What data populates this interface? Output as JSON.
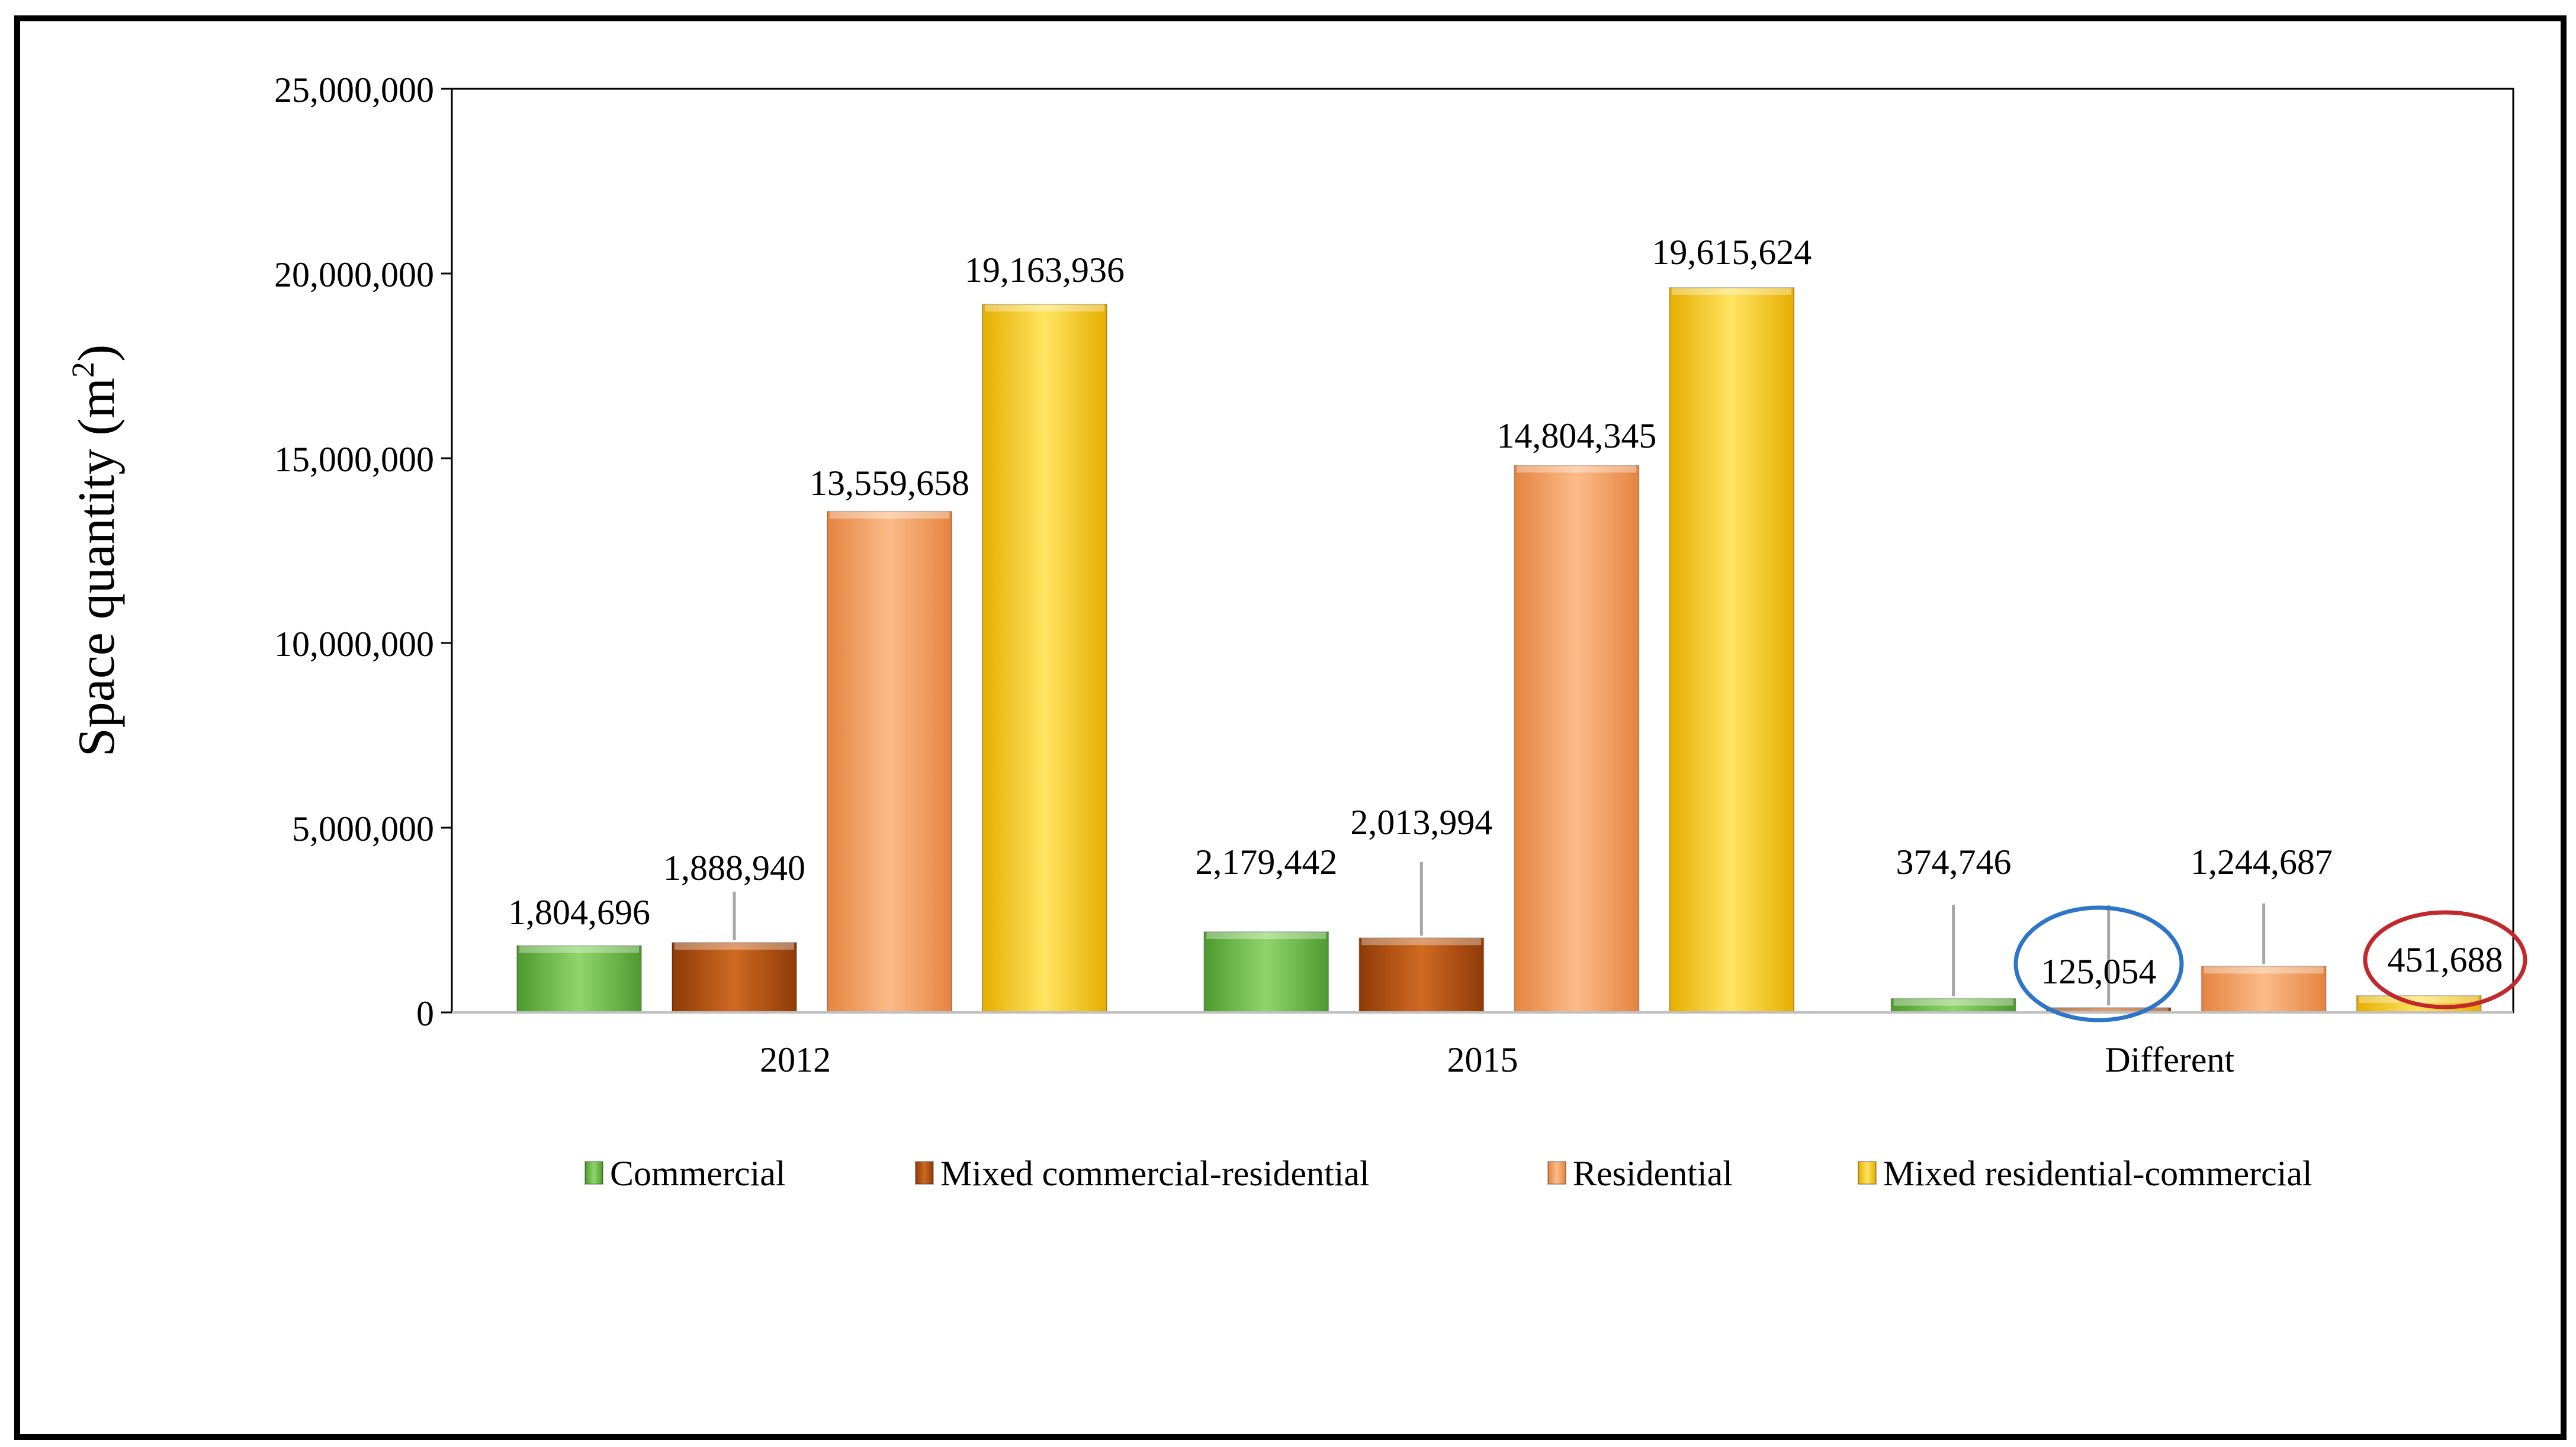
{
  "chart_data": {
    "type": "bar",
    "title": "",
    "xlabel": "",
    "ylabel": "Space quantity (m",
    "ylabel_sup": "2",
    "ylabel_close": ")",
    "categories": [
      "2012",
      "2015",
      "Different"
    ],
    "ylim": [
      0,
      25000000
    ],
    "yticks": [
      0,
      5000000,
      10000000,
      15000000,
      20000000,
      25000000
    ],
    "ytick_labels": [
      "0",
      "5,000,000",
      "10,000,000",
      "15,000,000",
      "20,000,000",
      "25,000,000"
    ],
    "grid": false,
    "legend_position": "bottom",
    "series": [
      {
        "name": "Commercial",
        "color": "#6abf45",
        "values": [
          1804696,
          2179442,
          374746
        ],
        "labels": [
          "1,804,696",
          "2,179,442",
          "374,746"
        ]
      },
      {
        "name": "Mixed commercial-residential",
        "color": "#b5500f",
        "values": [
          1888940,
          2013994,
          125054
        ],
        "labels": [
          "1,888,940",
          "2,013,994",
          "125,054"
        ]
      },
      {
        "name": "Residential",
        "color": "#f39a58",
        "values": [
          13559658,
          14804345,
          1244687
        ],
        "labels": [
          "13,559,658",
          "14,804,345",
          "1,244,687"
        ]
      },
      {
        "name": "Mixed residential-commercial",
        "color": "#f5c51a",
        "values": [
          19163936,
          19615624,
          451688
        ],
        "labels": [
          "19,163,936",
          "19,615,624",
          "451,688"
        ]
      }
    ],
    "annotations": [
      {
        "type": "ellipse",
        "target": "125,054",
        "color": "#2e75c8"
      },
      {
        "type": "ellipse",
        "target": "451,688",
        "color": "#c0282c"
      }
    ]
  }
}
